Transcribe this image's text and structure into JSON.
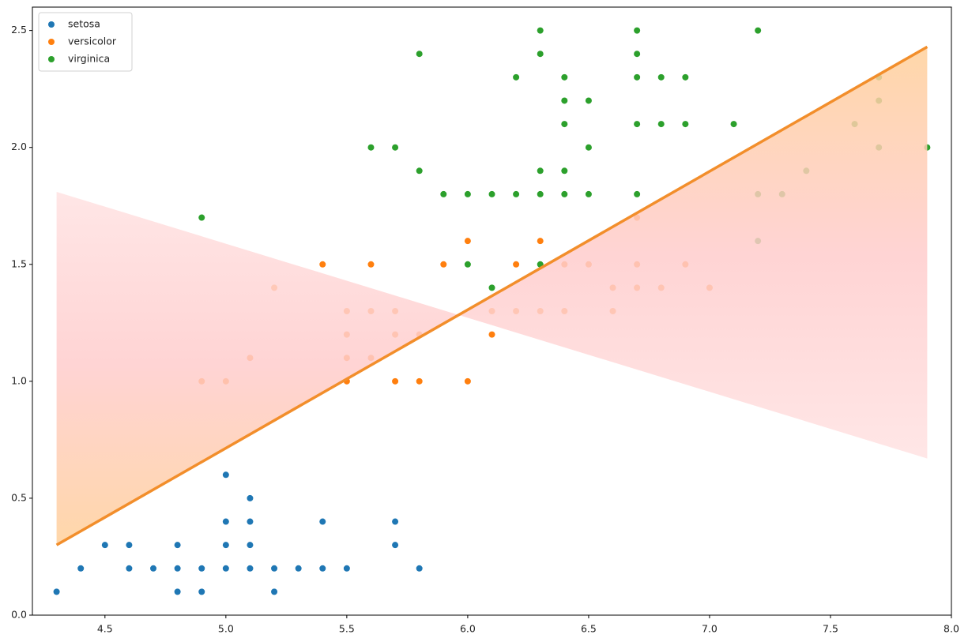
{
  "chart_data": {
    "type": "scatter",
    "xlim": [
      4.2,
      8.0
    ],
    "ylim": [
      0,
      2.6
    ],
    "xticks": [
      4.5,
      {
        "value": 5.0,
        "label": "5.0"
      },
      5.5,
      {
        "value": 6.0,
        "label": "6.0"
      },
      6.5,
      {
        "value": 7.0,
        "label": "7.0"
      },
      7.5,
      {
        "value": 8.0,
        "label": "8.0"
      }
    ],
    "yticks": [
      {
        "value": 0,
        "label": "0.0"
      },
      0.5,
      {
        "value": 1.0,
        "label": "1.0"
      },
      1.5,
      {
        "value": 2.0,
        "label": "2.0"
      },
      2.5
    ],
    "legend": "upper left",
    "series": [
      {
        "name": "setosa",
        "color": "#1f77b4",
        "x": [
          4.3,
          4.4,
          4.5,
          4.6,
          4.6,
          4.7,
          4.8,
          4.8,
          4.8,
          4.9,
          4.9,
          5.0,
          5.0,
          5.0,
          5.0,
          5.1,
          5.1,
          5.1,
          5.1,
          5.2,
          5.2,
          5.3,
          5.4,
          5.4,
          5.5,
          5.7,
          5.7,
          5.8
        ],
        "y": [
          0.1,
          0.2,
          0.3,
          0.3,
          0.2,
          0.2,
          0.3,
          0.2,
          0.1,
          0.2,
          0.1,
          0.6,
          0.4,
          0.3,
          0.2,
          0.5,
          0.4,
          0.3,
          0.2,
          0.2,
          0.1,
          0.2,
          0.4,
          0.2,
          0.2,
          0.4,
          0.3,
          0.2
        ]
      },
      {
        "name": "versicolor",
        "color": "#ff7f0e",
        "x": [
          4.9,
          5.0,
          5.1,
          5.2,
          5.4,
          5.5,
          5.5,
          5.5,
          5.5,
          5.6,
          5.6,
          5.6,
          5.7,
          5.7,
          5.7,
          5.8,
          5.8,
          5.9,
          6.0,
          6.0,
          6.1,
          6.1,
          6.2,
          6.2,
          6.3,
          6.3,
          6.4,
          6.4,
          6.5,
          6.6,
          6.6,
          6.7,
          6.7,
          6.7,
          6.8,
          6.9,
          7.0
        ],
        "y": [
          1.0,
          1.0,
          1.1,
          1.4,
          1.5,
          1.3,
          1.2,
          1.1,
          1.0,
          1.5,
          1.3,
          1.1,
          1.3,
          1.2,
          1.0,
          1.2,
          1.0,
          1.5,
          1.6,
          1.0,
          1.3,
          1.2,
          1.5,
          1.3,
          1.6,
          1.3,
          1.5,
          1.3,
          1.5,
          1.4,
          1.3,
          1.7,
          1.5,
          1.4,
          1.4,
          1.5,
          1.4
        ]
      },
      {
        "name": "virginica",
        "color": "#2ca02c",
        "x": [
          4.9,
          5.6,
          5.7,
          5.8,
          5.8,
          5.9,
          6.0,
          6.0,
          6.1,
          6.1,
          6.2,
          6.2,
          6.3,
          6.3,
          6.3,
          6.3,
          6.3,
          6.4,
          6.4,
          6.4,
          6.4,
          6.4,
          6.5,
          6.5,
          6.5,
          6.7,
          6.7,
          6.7,
          6.7,
          6.7,
          6.8,
          6.8,
          6.9,
          6.9,
          7.1,
          7.2,
          7.2,
          7.2,
          7.3,
          7.4,
          7.6,
          7.7,
          7.7,
          7.7,
          7.9
        ],
        "y": [
          1.7,
          2.0,
          2.0,
          2.4,
          1.9,
          1.8,
          1.8,
          1.5,
          1.8,
          1.4,
          2.3,
          1.8,
          2.5,
          2.4,
          1.9,
          1.8,
          1.5,
          2.3,
          2.2,
          2.1,
          1.9,
          1.8,
          2.2,
          2.0,
          1.8,
          2.5,
          2.4,
          2.3,
          2.1,
          1.8,
          2.3,
          2.1,
          2.3,
          2.1,
          2.1,
          2.5,
          1.8,
          1.6,
          1.8,
          1.9,
          2.1,
          2.3,
          2.2,
          2.0,
          2.0
        ]
      }
    ],
    "fit": {
      "color": "#f28e2b",
      "x": [
        4.3,
        7.9
      ],
      "y": [
        0.3,
        2.43
      ]
    },
    "shade": {
      "x": [
        4.3,
        7.9
      ],
      "y": [
        1.81,
        0.67
      ]
    }
  }
}
